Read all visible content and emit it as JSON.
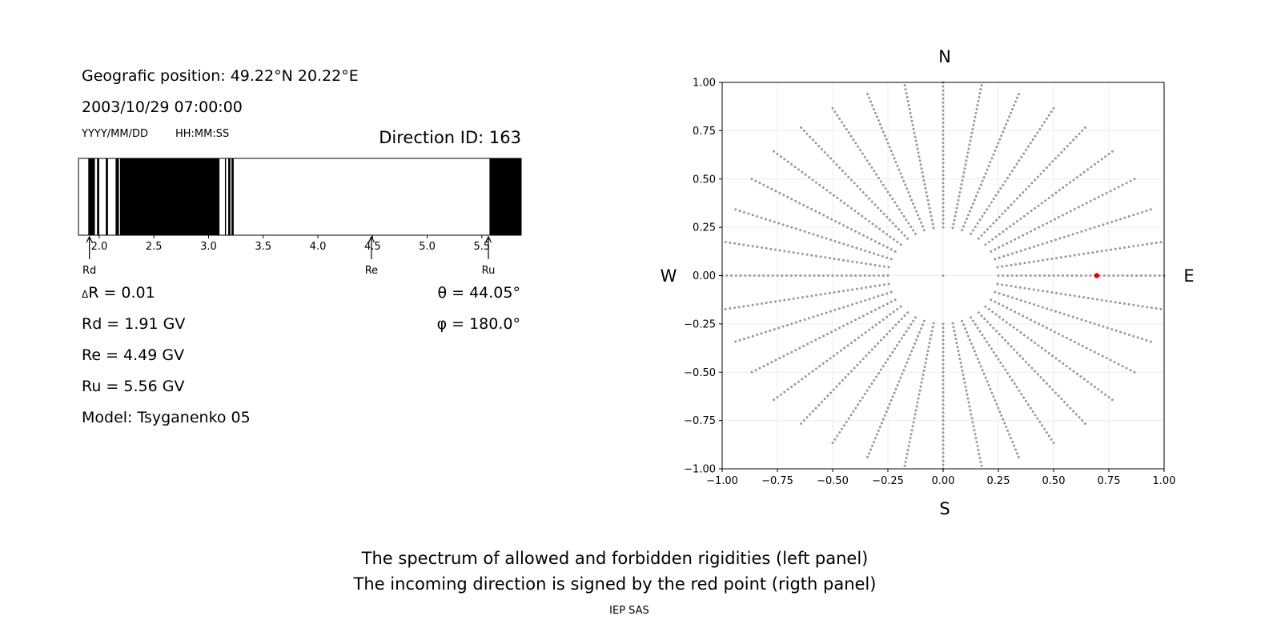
{
  "left_panel": {
    "position_text": "Geografic position: 49.22°N 20.22°E",
    "datetime_text": "2003/10/29 07:00:00",
    "date_format_label": "YYYY/MM/DD",
    "time_format_label": "HH:MM:SS",
    "direction_id_text": "Direction ID: 163",
    "delta_r_text": "R = 0.01",
    "delta_symbol": "Δ",
    "rd_text": "Rd = 1.91 GV",
    "re_text": "Re = 4.49 GV",
    "ru_text": "Ru = 5.56 GV",
    "model_text": "Model: Tsyganenko 05",
    "theta_text": "θ = 44.05°",
    "phi_text": "φ = 180.0°",
    "marker_rd": "Rd",
    "marker_re": "Re",
    "marker_ru": "Ru"
  },
  "right_panel": {
    "north_label": "N",
    "south_label": "S",
    "west_label": "W",
    "east_label": "E"
  },
  "caption": {
    "line1": "The spectrum of allowed and forbidden rigidities (left panel)",
    "line2": "The incoming direction is signed by the red point (rigth panel)",
    "footer": "IEP SAS"
  },
  "chart_data": [
    {
      "type": "bar",
      "name": "rigidity spectrum",
      "xlim": [
        1.81,
        5.86
      ],
      "xticks": [
        "2.0",
        "2.5",
        "3.0",
        "3.5",
        "4.0",
        "4.5",
        "5.0",
        "5.5"
      ],
      "xtick_values": [
        2.0,
        2.5,
        3.0,
        3.5,
        4.0,
        4.5,
        5.0,
        5.5
      ],
      "forbidden_bands": [
        [
          1.9,
          1.96
        ],
        [
          1.98,
          2.0
        ],
        [
          2.06,
          2.08
        ],
        [
          2.15,
          2.18
        ],
        [
          2.19,
          3.1
        ],
        [
          3.15,
          3.16
        ],
        [
          3.18,
          3.2
        ],
        [
          3.21,
          3.23
        ],
        [
          5.57,
          5.86
        ]
      ],
      "markers": [
        {
          "label": "Rd",
          "value": 1.91
        },
        {
          "label": "Re",
          "value": 4.49
        },
        {
          "label": "Ru",
          "value": 5.56
        }
      ],
      "colors": {
        "forbidden": "#000000",
        "allowed": "#ffffff"
      }
    },
    {
      "type": "scatter",
      "name": "asymptotic directions",
      "xlim": [
        -1.0,
        1.0
      ],
      "ylim": [
        -1.0,
        1.0
      ],
      "xticks": [
        "−1.00",
        "−0.75",
        "−0.50",
        "−0.25",
        "0.00",
        "0.25",
        "0.50",
        "0.75",
        "1.00"
      ],
      "yticks": [
        "−1.00",
        "−0.75",
        "−0.50",
        "−0.25",
        "0.00",
        "0.25",
        "0.50",
        "0.75",
        "1.00"
      ],
      "tick_values": [
        -1.0,
        -0.75,
        -0.5,
        -0.25,
        0.0,
        0.25,
        0.5,
        0.75,
        1.0
      ],
      "grid": true,
      "grid_rays_deg": [
        0,
        10,
        20,
        30,
        40,
        50,
        60,
        70,
        80,
        90,
        100,
        110,
        120,
        130,
        140,
        150,
        160,
        170,
        180,
        190,
        200,
        210,
        220,
        230,
        240,
        250,
        260,
        270,
        280,
        290,
        300,
        310,
        320,
        330,
        340,
        350
      ],
      "grid_point_color": "#999999",
      "highlight": {
        "x": 0.695,
        "y": 0.0,
        "color": "#e00000"
      }
    }
  ]
}
